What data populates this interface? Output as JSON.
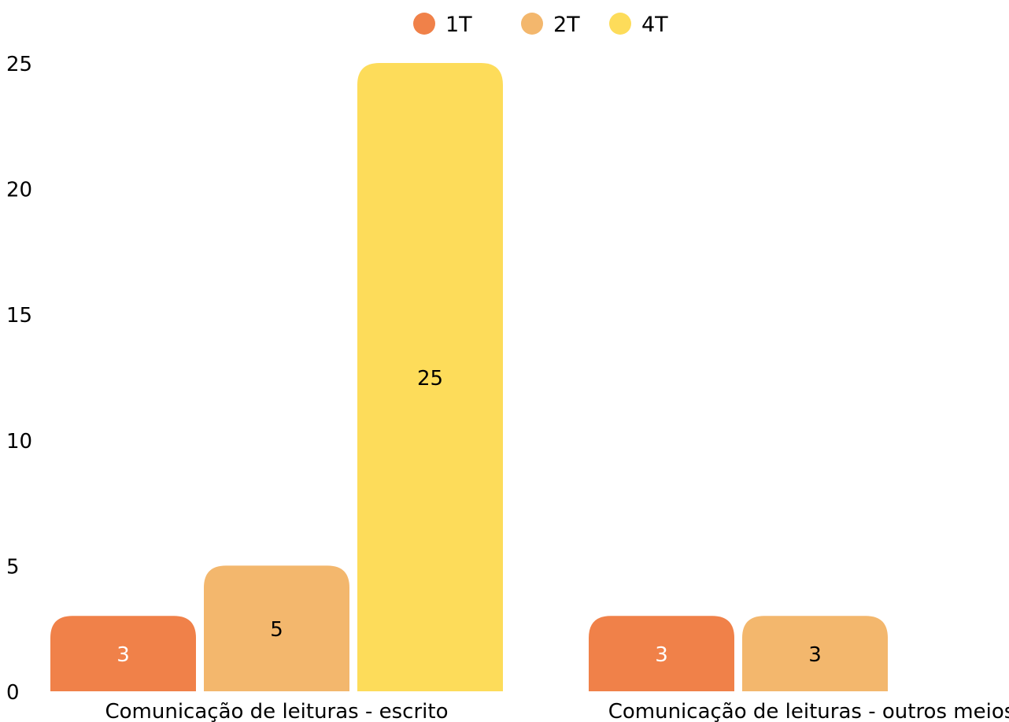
{
  "chart_data": {
    "type": "bar",
    "categories": [
      "Comunicação de leituras - escrito",
      "Comunicação de leituras - outros meios"
    ],
    "series": [
      {
        "name": "1T",
        "color": "#F08149",
        "values": [
          3,
          3
        ],
        "label_color": "#ffffff"
      },
      {
        "name": "2T",
        "color": "#F3B76D",
        "values": [
          5,
          3
        ],
        "label_color": "#000000"
      },
      {
        "name": "4T",
        "color": "#FDDC5A",
        "values": [
          25,
          null
        ],
        "label_color": "#000000"
      }
    ],
    "y_ticks": [
      "0",
      "5",
      "10",
      "15",
      "20",
      "25"
    ],
    "ylim": [
      0,
      25
    ],
    "grid": false,
    "legend_position": "top-center",
    "title": "",
    "xlabel": "",
    "ylabel": ""
  }
}
